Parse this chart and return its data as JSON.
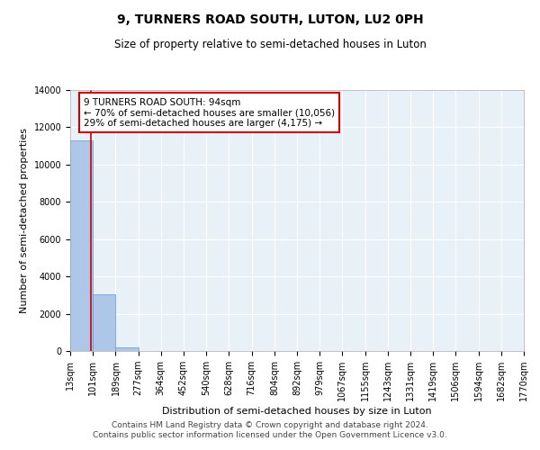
{
  "title": "9, TURNERS ROAD SOUTH, LUTON, LU2 0PH",
  "subtitle": "Size of property relative to semi-detached houses in Luton",
  "xlabel": "Distribution of semi-detached houses by size in Luton",
  "ylabel": "Number of semi-detached properties",
  "footer_line1": "Contains HM Land Registry data © Crown copyright and database right 2024.",
  "footer_line2": "Contains public sector information licensed under the Open Government Licence v3.0.",
  "annotation_title": "9 TURNERS ROAD SOUTH: 94sqm",
  "annotation_line1": "← 70% of semi-detached houses are smaller (10,056)",
  "annotation_line2": "29% of semi-detached houses are larger (4,175) →",
  "property_size": 94,
  "bin_edges": [
    13,
    101,
    189,
    277,
    364,
    452,
    540,
    628,
    716,
    804,
    892,
    979,
    1067,
    1155,
    1243,
    1331,
    1419,
    1506,
    1594,
    1682,
    1770
  ],
  "bin_labels": [
    "13sqm",
    "101sqm",
    "189sqm",
    "277sqm",
    "364sqm",
    "452sqm",
    "540sqm",
    "628sqm",
    "716sqm",
    "804sqm",
    "892sqm",
    "979sqm",
    "1067sqm",
    "1155sqm",
    "1243sqm",
    "1331sqm",
    "1419sqm",
    "1506sqm",
    "1594sqm",
    "1682sqm",
    "1770sqm"
  ],
  "bar_heights": [
    11300,
    3050,
    200,
    0,
    0,
    0,
    0,
    0,
    0,
    0,
    0,
    0,
    0,
    0,
    0,
    0,
    0,
    0,
    0,
    0
  ],
  "bar_color": "#aec6e8",
  "bar_edge_color": "#5b9bd5",
  "background_color": "#e8f0f8",
  "grid_color": "#ffffff",
  "annotation_box_color": "#ffffff",
  "annotation_box_edge": "#cc0000",
  "vline_color": "#cc0000",
  "ylim": [
    0,
    14000
  ],
  "yticks": [
    0,
    2000,
    4000,
    6000,
    8000,
    10000,
    12000,
    14000
  ],
  "title_fontsize": 10,
  "subtitle_fontsize": 8.5,
  "axis_label_fontsize": 8,
  "tick_fontsize": 7,
  "annotation_fontsize": 7.5,
  "footer_fontsize": 6.5
}
